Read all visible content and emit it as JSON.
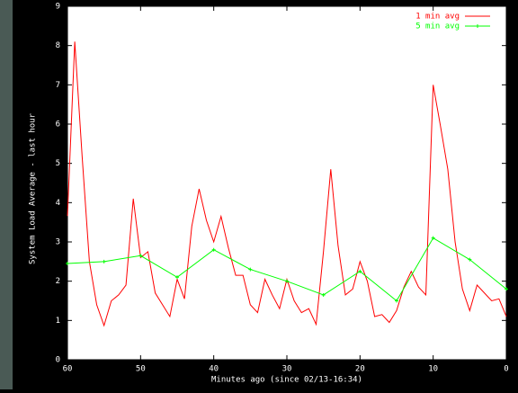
{
  "chart_data": {
    "type": "line",
    "y_label": "System Load Average - last hour",
    "x_label": "Minutes ago (since 02/13-16:34)",
    "xlim": [
      60,
      0
    ],
    "xticks": [
      60,
      50,
      40,
      30,
      20,
      10,
      0
    ],
    "ylim": [
      0,
      9
    ],
    "yticks": [
      0,
      1,
      2,
      3,
      4,
      5,
      6,
      7,
      8,
      9
    ],
    "legend": "top-right",
    "series": [
      {
        "name": "1 min avg",
        "color": "#ff0000",
        "markers": false,
        "x": [
          60,
          59,
          58,
          57,
          56,
          55,
          54,
          53,
          52,
          51,
          50,
          49,
          48,
          47,
          46,
          45,
          44,
          43,
          42,
          41,
          40,
          39,
          38,
          37,
          36,
          35,
          34,
          33,
          32,
          31,
          30,
          29,
          28,
          27,
          26,
          25,
          24,
          23,
          22,
          21,
          20,
          19,
          18,
          17,
          16,
          15,
          14,
          13,
          12,
          11,
          10,
          9,
          8,
          7,
          6,
          5,
          4,
          3,
          2,
          1,
          0
        ],
        "values": [
          3.66,
          8.1,
          5.2,
          2.5,
          1.4,
          0.87,
          1.5,
          1.65,
          1.9,
          4.1,
          2.6,
          2.75,
          1.7,
          1.4,
          1.1,
          2.05,
          1.55,
          3.4,
          4.35,
          3.55,
          3.0,
          3.65,
          2.85,
          2.15,
          2.15,
          1.4,
          1.2,
          2.05,
          1.65,
          1.3,
          2.05,
          1.5,
          1.2,
          1.3,
          0.9,
          2.75,
          4.85,
          2.9,
          1.65,
          1.8,
          2.5,
          2.0,
          1.1,
          1.15,
          0.95,
          1.25,
          1.85,
          2.25,
          1.85,
          1.65,
          7.0,
          5.95,
          4.85,
          3.0,
          1.8,
          1.25,
          1.9,
          1.7,
          1.5,
          1.55,
          1.1
        ]
      },
      {
        "name": "5 min avg",
        "color": "#00ff00",
        "markers": true,
        "x": [
          60,
          55,
          50,
          45,
          40,
          35,
          30,
          25,
          20,
          15,
          10,
          5,
          0
        ],
        "values": [
          2.45,
          2.5,
          2.65,
          2.1,
          2.8,
          2.3,
          2.0,
          1.65,
          2.25,
          1.5,
          3.1,
          2.55,
          1.8
        ]
      }
    ]
  }
}
